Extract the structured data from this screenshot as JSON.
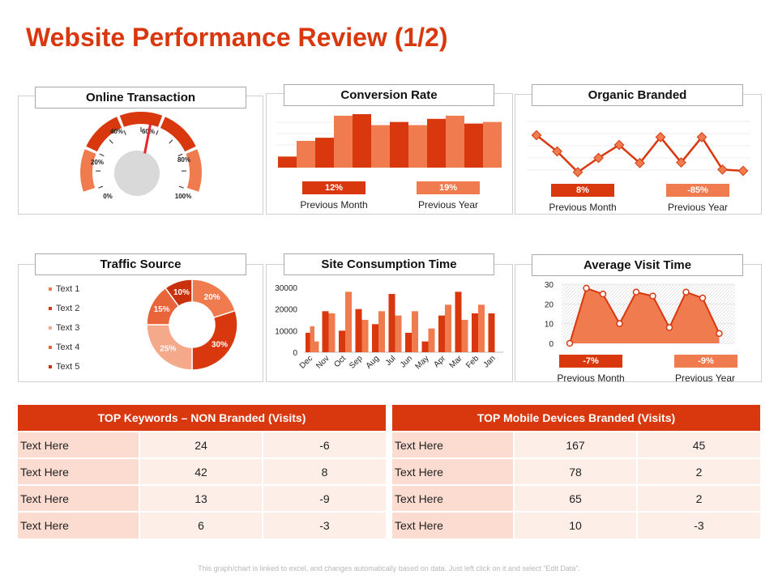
{
  "page": {
    "title": "Website Performance Review (1/2)",
    "footnote": "This graph/chart is linked to excel, and changes automatically based on data. Just left click on it and select “Edit Data”."
  },
  "colors": {
    "accent": "#d9380e",
    "accent_light": "#ef7b4e",
    "accent_pale": "#f3a98a"
  },
  "panels": {
    "online_transaction": {
      "title": "Online Transaction"
    },
    "conversion_rate": {
      "title": "Conversion Rate",
      "badge1": "12%",
      "badge2": "19%",
      "cap1": "Previous  Month",
      "cap2": "Previous  Year"
    },
    "organic_branded": {
      "title": "Organic Branded",
      "badge1": "8%",
      "badge2": "-85%",
      "cap1": "Previous  Month",
      "cap2": "Previous  Year"
    },
    "traffic_source": {
      "title": "Traffic Source"
    },
    "site_consumption": {
      "title": "Site Consumption Time"
    },
    "avg_visit": {
      "title": "Average Visit Time",
      "badge1": "-7%",
      "badge2": "-9%",
      "cap1": "Previous Month",
      "cap2": "Previous Year"
    }
  },
  "chart_data": [
    {
      "type": "gauge",
      "title": "Online Transaction",
      "tick_labels": [
        "0%",
        "20%",
        "40%",
        "60%",
        "80%",
        "100%"
      ],
      "value": 55
    },
    {
      "type": "bar",
      "title": "Conversion Rate",
      "values": [
        7,
        17,
        19,
        33,
        34,
        27,
        29,
        27,
        31,
        33,
        28,
        29
      ]
    },
    {
      "type": "line",
      "title": "Organic Branded",
      "values": [
        75,
        50,
        18,
        40,
        60,
        32,
        72,
        33,
        72,
        22,
        20
      ]
    },
    {
      "type": "pie",
      "title": "Traffic Source",
      "legend": [
        "Text 1",
        "Text 2",
        "Text 3",
        "Text 4",
        "Text 5"
      ],
      "slices": [
        {
          "name": "Text 1",
          "value": 20,
          "label": "20%"
        },
        {
          "name": "Text 2",
          "value": 30,
          "label": "30%"
        },
        {
          "name": "Text 3",
          "value": 25,
          "label": "25%"
        },
        {
          "name": "Text 4",
          "value": 15,
          "label": "15%"
        },
        {
          "name": "Text 5",
          "value": 10,
          "label": "10%"
        }
      ]
    },
    {
      "type": "bar",
      "title": "Site Consumption Time",
      "categories": [
        "Dec",
        "Nov",
        "Oct",
        "Sep",
        "Aug",
        "Jul",
        "Jun",
        "May",
        "Apr",
        "Mar",
        "Feb",
        "Jan"
      ],
      "series": [
        {
          "values": [
            9000,
            19000,
            10000,
            20000,
            13000,
            27000,
            9000,
            5000,
            17000,
            28000,
            18000,
            18000
          ]
        },
        {
          "values": [
            12000,
            18000,
            28000,
            15000,
            19000,
            17000,
            19000,
            11000,
            22000,
            15000,
            22000,
            0
          ]
        },
        {
          "values": [
            5000,
            0,
            0,
            0,
            0,
            0,
            0,
            0,
            0,
            0,
            0,
            0
          ]
        }
      ],
      "ylim": [
        0,
        30000
      ],
      "yticks": [
        "0",
        "10000",
        "20000",
        "30000"
      ]
    },
    {
      "type": "area",
      "title": "Average Visit Time",
      "values": [
        0,
        28,
        25,
        10,
        26,
        24,
        8,
        26,
        23,
        5
      ],
      "ylim": [
        0,
        30
      ],
      "yticks": [
        "0",
        "10",
        "20",
        "30"
      ]
    }
  ],
  "tables": {
    "keywords": {
      "header": "TOP Keywords – NON Branded (Visits)",
      "rows": [
        [
          "Text Here",
          "24",
          "-6"
        ],
        [
          "Text Here",
          "42",
          "8"
        ],
        [
          "Text Here",
          "13",
          "-9"
        ],
        [
          "Text Here",
          "6",
          "-3"
        ]
      ]
    },
    "mobile": {
      "header": "TOP Mobile Devices Branded (Visits)",
      "rows": [
        [
          "Text Here",
          "167",
          "45"
        ],
        [
          "Text Here",
          "78",
          "2"
        ],
        [
          "Text Here",
          "65",
          "2"
        ],
        [
          "Text Here",
          "10",
          "-3"
        ]
      ]
    }
  }
}
